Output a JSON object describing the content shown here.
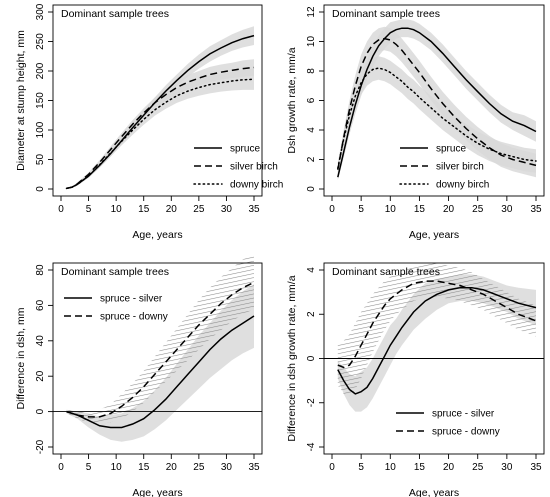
{
  "figure": {
    "panel_header": "Dominant sample trees",
    "x_label": "Age, years"
  },
  "chart_data": [
    {
      "type": "line",
      "title": "Dominant sample trees",
      "xlabel": "Age, years",
      "ylabel": "Diameter at stump height, mm",
      "xlim": [
        0,
        35
      ],
      "ylim": [
        0,
        300
      ],
      "x_ticks": [
        0,
        5,
        10,
        15,
        20,
        25,
        30,
        35
      ],
      "y_ticks": [
        0,
        50,
        100,
        150,
        200,
        250,
        300
      ],
      "legend_position": "bottom-right",
      "x": [
        1,
        2,
        3,
        5,
        7,
        9,
        11,
        13,
        15,
        17,
        19,
        21,
        23,
        25,
        27,
        29,
        31,
        33,
        35
      ],
      "series": [
        {
          "name": "spruce",
          "style": "solid",
          "band": true,
          "values": [
            1,
            3,
            8,
            22,
            40,
            60,
            82,
            104,
            125,
            146,
            166,
            184,
            201,
            216,
            229,
            239,
            248,
            255,
            260
          ],
          "band_lower": [
            0,
            2,
            6,
            19,
            36,
            55,
            76,
            97,
            117,
            137,
            156,
            174,
            190,
            204,
            216,
            226,
            234,
            240,
            244
          ],
          "band_upper": [
            2,
            5,
            10,
            25,
            44,
            65,
            88,
            111,
            133,
            155,
            176,
            194,
            212,
            228,
            242,
            252,
            262,
            270,
            276
          ]
        },
        {
          "name": "silver birch",
          "style": "dashed",
          "band": true,
          "values": [
            1,
            3,
            9,
            25,
            45,
            67,
            89,
            110,
            129,
            146,
            160,
            172,
            181,
            188,
            194,
            198,
            201,
            204,
            206
          ],
          "band_lower": [
            0,
            2,
            7,
            22,
            41,
            62,
            83,
            103,
            121,
            137,
            150,
            161,
            169,
            176,
            181,
            185,
            188,
            190,
            192
          ],
          "band_upper": [
            2,
            4,
            11,
            28,
            49,
            72,
            95,
            117,
            137,
            155,
            170,
            183,
            193,
            200,
            207,
            211,
            214,
            218,
            220
          ]
        },
        {
          "name": "downy birch",
          "style": "dotted",
          "band": true,
          "values": [
            1,
            3,
            8,
            22,
            41,
            61,
            81,
            100,
            118,
            134,
            147,
            158,
            166,
            172,
            177,
            180,
            183,
            185,
            186
          ],
          "band_lower": [
            0,
            2,
            6,
            19,
            36,
            55,
            74,
            92,
            109,
            124,
            136,
            146,
            153,
            158,
            162,
            165,
            167,
            168,
            168
          ],
          "band_upper": [
            2,
            4,
            10,
            25,
            46,
            67,
            88,
            108,
            127,
            144,
            158,
            170,
            179,
            186,
            192,
            195,
            199,
            202,
            204
          ]
        }
      ]
    },
    {
      "type": "line",
      "title": "Dominant sample trees",
      "xlabel": "Age, years",
      "ylabel": "Dsh growth rate, mm/a",
      "xlim": [
        0,
        35
      ],
      "ylim": [
        0,
        12
      ],
      "x_ticks": [
        0,
        5,
        10,
        15,
        20,
        25,
        30,
        35
      ],
      "y_ticks": [
        0,
        2,
        4,
        6,
        8,
        10,
        12
      ],
      "legend_position": "bottom-right",
      "x": [
        1,
        2,
        3,
        4,
        5,
        6,
        7,
        8,
        9,
        10,
        11,
        12,
        13,
        14,
        15,
        17,
        19,
        21,
        23,
        25,
        27,
        29,
        31,
        33,
        35
      ],
      "series": [
        {
          "name": "spruce",
          "style": "solid",
          "band": true,
          "values": [
            0.8,
            2.5,
            4.2,
            5.7,
            7.0,
            8.1,
            9.0,
            9.7,
            10.2,
            10.6,
            10.8,
            10.9,
            10.9,
            10.8,
            10.6,
            10.0,
            9.2,
            8.3,
            7.4,
            6.6,
            5.8,
            5.1,
            4.6,
            4.3,
            3.9
          ],
          "band_lower": [
            0.6,
            2.1,
            3.7,
            5.1,
            6.3,
            7.4,
            8.3,
            9.0,
            9.5,
            9.9,
            10.2,
            10.3,
            10.3,
            10.2,
            10.0,
            9.4,
            8.6,
            7.7,
            6.8,
            6.0,
            5.2,
            4.5,
            4.0,
            3.6,
            3.2
          ],
          "band_upper": [
            1.0,
            2.9,
            4.7,
            6.3,
            7.7,
            8.8,
            9.7,
            10.4,
            10.9,
            11.3,
            11.4,
            11.5,
            11.5,
            11.4,
            11.2,
            10.6,
            9.8,
            8.9,
            8.0,
            7.2,
            6.4,
            5.7,
            5.2,
            5.0,
            4.6
          ]
        },
        {
          "name": "silver birch",
          "style": "dashed",
          "band": true,
          "values": [
            1.3,
            3.5,
            5.4,
            7.0,
            8.3,
            9.2,
            9.8,
            10.1,
            10.2,
            10.1,
            9.8,
            9.4,
            8.9,
            8.4,
            7.9,
            6.8,
            5.8,
            4.9,
            4.1,
            3.4,
            2.8,
            2.3,
            2.0,
            1.8,
            1.6
          ],
          "band_lower": [
            1.0,
            3.0,
            4.8,
            6.3,
            7.5,
            8.4,
            9.0,
            9.3,
            9.4,
            9.3,
            9.0,
            8.6,
            8.1,
            7.6,
            7.1,
            6.0,
            5.0,
            4.1,
            3.3,
            2.6,
            2.0,
            1.5,
            1.2,
            1.0,
            0.8
          ],
          "band_upper": [
            1.6,
            4.0,
            6.0,
            7.7,
            9.1,
            10.0,
            10.6,
            10.9,
            11.0,
            10.9,
            10.6,
            10.2,
            9.7,
            9.2,
            8.7,
            7.6,
            6.6,
            5.7,
            4.9,
            4.2,
            3.6,
            3.1,
            2.8,
            2.6,
            2.4
          ]
        },
        {
          "name": "downy birch",
          "style": "dotted",
          "band": true,
          "values": [
            1.4,
            3.4,
            5.0,
            6.3,
            7.2,
            7.8,
            8.1,
            8.2,
            8.1,
            7.9,
            7.6,
            7.3,
            6.9,
            6.6,
            6.2,
            5.5,
            4.8,
            4.2,
            3.6,
            3.1,
            2.7,
            2.4,
            2.2,
            2.0,
            1.9
          ],
          "band_lower": [
            1.0,
            2.9,
            4.4,
            5.6,
            6.4,
            7.0,
            7.3,
            7.4,
            7.3,
            7.1,
            6.8,
            6.5,
            6.1,
            5.8,
            5.4,
            4.7,
            4.0,
            3.4,
            2.8,
            2.3,
            1.9,
            1.6,
            1.4,
            1.2,
            1.1
          ],
          "band_upper": [
            1.8,
            3.9,
            5.6,
            7.0,
            8.0,
            8.6,
            8.9,
            9.0,
            8.9,
            8.7,
            8.4,
            8.1,
            7.7,
            7.4,
            7.0,
            6.3,
            5.6,
            5.0,
            4.4,
            3.9,
            3.5,
            3.2,
            3.0,
            2.8,
            2.7
          ]
        }
      ]
    },
    {
      "type": "line",
      "title": "Dominant sample trees",
      "xlabel": "Age, years",
      "ylabel": "Difference in dsh, mm",
      "xlim": [
        0,
        35
      ],
      "ylim": [
        -20,
        80
      ],
      "x_ticks": [
        0,
        5,
        10,
        15,
        20,
        25,
        30,
        35
      ],
      "y_ticks": [
        -20,
        0,
        20,
        40,
        60,
        80
      ],
      "zero_line": true,
      "legend_position": "top-left",
      "x": [
        1,
        3,
        5,
        7,
        9,
        11,
        13,
        15,
        17,
        19,
        21,
        23,
        25,
        27,
        29,
        31,
        33,
        35
      ],
      "series": [
        {
          "name": "spruce - silver",
          "style": "solid",
          "band": "shaded",
          "values": [
            0,
            -2,
            -5,
            -8,
            -9,
            -9,
            -7,
            -4,
            1,
            7,
            14,
            21,
            28,
            35,
            41,
            46,
            50,
            54
          ],
          "band_lower": [
            -1,
            -4,
            -9,
            -13,
            -16,
            -17,
            -16,
            -14,
            -10,
            -5,
            1,
            7,
            13,
            19,
            24,
            29,
            33,
            36
          ],
          "band_upper": [
            1,
            0,
            -1,
            -3,
            -2,
            -1,
            2,
            6,
            12,
            19,
            27,
            35,
            43,
            50,
            57,
            63,
            68,
            72
          ]
        },
        {
          "name": "spruce - downy",
          "style": "dashed",
          "band": "hatched",
          "values": [
            0,
            -2,
            -3,
            -3,
            -1,
            3,
            8,
            14,
            21,
            28,
            35,
            42,
            49,
            55,
            61,
            66,
            70,
            73
          ],
          "band_lower": [
            -1,
            -4,
            -6,
            -7,
            -6,
            -4,
            0,
            5,
            11,
            17,
            23,
            29,
            35,
            41,
            46,
            51,
            55,
            58
          ],
          "band_upper": [
            1,
            0,
            0,
            1,
            4,
            10,
            16,
            23,
            31,
            39,
            47,
            55,
            63,
            70,
            76,
            81,
            86,
            89
          ]
        }
      ]
    },
    {
      "type": "line",
      "title": "Dominant sample trees",
      "xlabel": "Age, years",
      "ylabel": "Difference in dsh growth rate, mm/a",
      "xlim": [
        0,
        35
      ],
      "ylim": [
        -4,
        4
      ],
      "x_ticks": [
        0,
        5,
        10,
        15,
        20,
        25,
        30,
        35
      ],
      "y_ticks": [
        -4,
        -2,
        0,
        2,
        4
      ],
      "zero_line": true,
      "legend_position": "bottom-right",
      "x": [
        1,
        2,
        3,
        4,
        5,
        6,
        7,
        8,
        9,
        10,
        11,
        12,
        14,
        16,
        18,
        20,
        22,
        24,
        26,
        28,
        30,
        32,
        35
      ],
      "series": [
        {
          "name": "spruce - silver",
          "style": "solid",
          "band": "shaded",
          "values": [
            -0.5,
            -1.0,
            -1.4,
            -1.6,
            -1.5,
            -1.3,
            -0.9,
            -0.4,
            0.1,
            0.6,
            1.0,
            1.4,
            2.1,
            2.6,
            2.9,
            3.1,
            3.2,
            3.2,
            3.1,
            2.9,
            2.7,
            2.5,
            2.3
          ],
          "band_lower": [
            -0.9,
            -1.6,
            -2.1,
            -2.4,
            -2.4,
            -2.2,
            -1.8,
            -1.3,
            -0.8,
            -0.3,
            0.2,
            0.6,
            1.3,
            1.8,
            2.2,
            2.5,
            2.6,
            2.6,
            2.5,
            2.3,
            2.1,
            1.8,
            1.5
          ],
          "band_upper": [
            -0.1,
            -0.4,
            -0.7,
            -0.8,
            -0.6,
            -0.4,
            0.0,
            0.5,
            1.0,
            1.5,
            1.8,
            2.2,
            2.9,
            3.4,
            3.6,
            3.7,
            3.8,
            3.8,
            3.7,
            3.5,
            3.3,
            3.2,
            3.1
          ]
        },
        {
          "name": "spruce - downy",
          "style": "dashed",
          "band": "hatched",
          "values": [
            -0.3,
            -0.4,
            -0.3,
            0.1,
            0.6,
            1.1,
            1.6,
            2.0,
            2.4,
            2.7,
            2.9,
            3.1,
            3.4,
            3.5,
            3.5,
            3.4,
            3.3,
            3.1,
            2.9,
            2.6,
            2.3,
            2.0,
            1.7
          ],
          "band_lower": [
            -1.2,
            -1.6,
            -1.7,
            -1.4,
            -0.9,
            -0.3,
            0.3,
            0.8,
            1.3,
            1.7,
            2.0,
            2.2,
            2.6,
            2.8,
            2.8,
            2.7,
            2.6,
            2.4,
            2.2,
            1.9,
            1.6,
            1.3,
            1.0
          ],
          "band_upper": [
            0.6,
            0.8,
            1.1,
            1.6,
            2.1,
            2.5,
            2.9,
            3.2,
            3.5,
            3.7,
            3.8,
            3.9,
            4.2,
            4.3,
            4.3,
            4.2,
            4.1,
            3.9,
            3.6,
            3.3,
            3.0,
            2.7,
            2.4
          ]
        }
      ]
    }
  ]
}
